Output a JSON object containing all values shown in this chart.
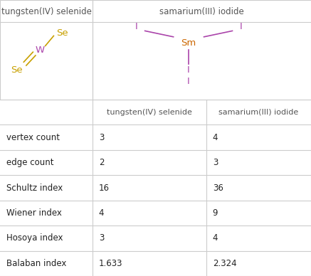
{
  "title1": "tungsten(IV) selenide",
  "title2": "samarium(III) iodide",
  "row_labels": [
    "vertex count",
    "edge count",
    "Schultz index",
    "Wiener index",
    "Hosoya index",
    "Balaban index"
  ],
  "col1_values": [
    "3",
    "2",
    "16",
    "4",
    "3",
    "1.633"
  ],
  "col2_values": [
    "4",
    "3",
    "36",
    "9",
    "4",
    "2.324"
  ],
  "se_color": "#c8a000",
  "w_color": "#aa44aa",
  "sm_color": "#cc6600",
  "i_color": "#aa44aa",
  "table_text_color": "#222222",
  "header_color": "#555555",
  "grid_color": "#cccccc",
  "bg_color": "#ffffff",
  "bond_color": "#aa44aa",
  "se_bond_color": "#c8a000"
}
